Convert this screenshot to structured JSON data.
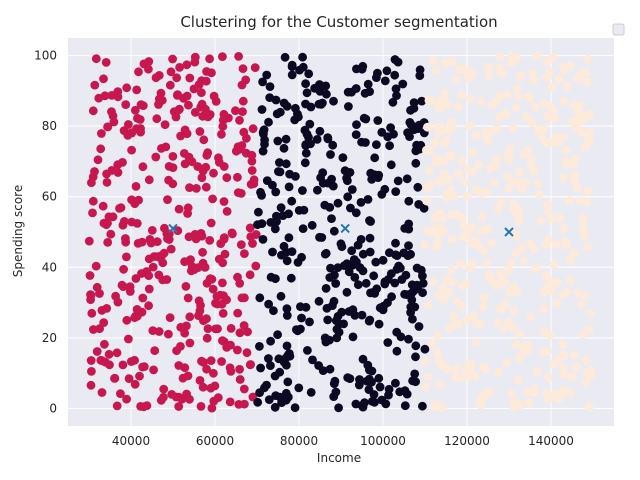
{
  "chart_data": {
    "type": "scatter",
    "title": "Clustering for the Customer segmentation",
    "xlabel": "Income",
    "ylabel": "Spending score",
    "xlim": [
      25000,
      155000
    ],
    "ylim": [
      -5,
      105
    ],
    "xticks": [
      40000,
      60000,
      80000,
      100000,
      120000,
      140000
    ],
    "yticks": [
      0,
      20,
      40,
      60,
      80,
      100
    ],
    "grid": true,
    "legend": "top-right",
    "background": "#eaeaf2",
    "series": [
      {
        "range_x": [
          30000,
          70000
        ],
        "range_y": [
          0,
          100
        ],
        "count": 400,
        "color": "#c8174f"
      },
      {
        "range_x": [
          70000,
          110000
        ],
        "range_y": [
          0,
          100
        ],
        "count": 400,
        "color": "#0c0923"
      },
      {
        "range_x": [
          110000,
          150000
        ],
        "range_y": [
          0,
          100
        ],
        "count": 400,
        "color": "#fdeadb"
      }
    ],
    "centroids": {
      "color": "#2077b4",
      "points": [
        {
          "x": 50000,
          "y": 51
        },
        {
          "x": 91000,
          "y": 51
        },
        {
          "x": 130000,
          "y": 50
        }
      ]
    }
  }
}
